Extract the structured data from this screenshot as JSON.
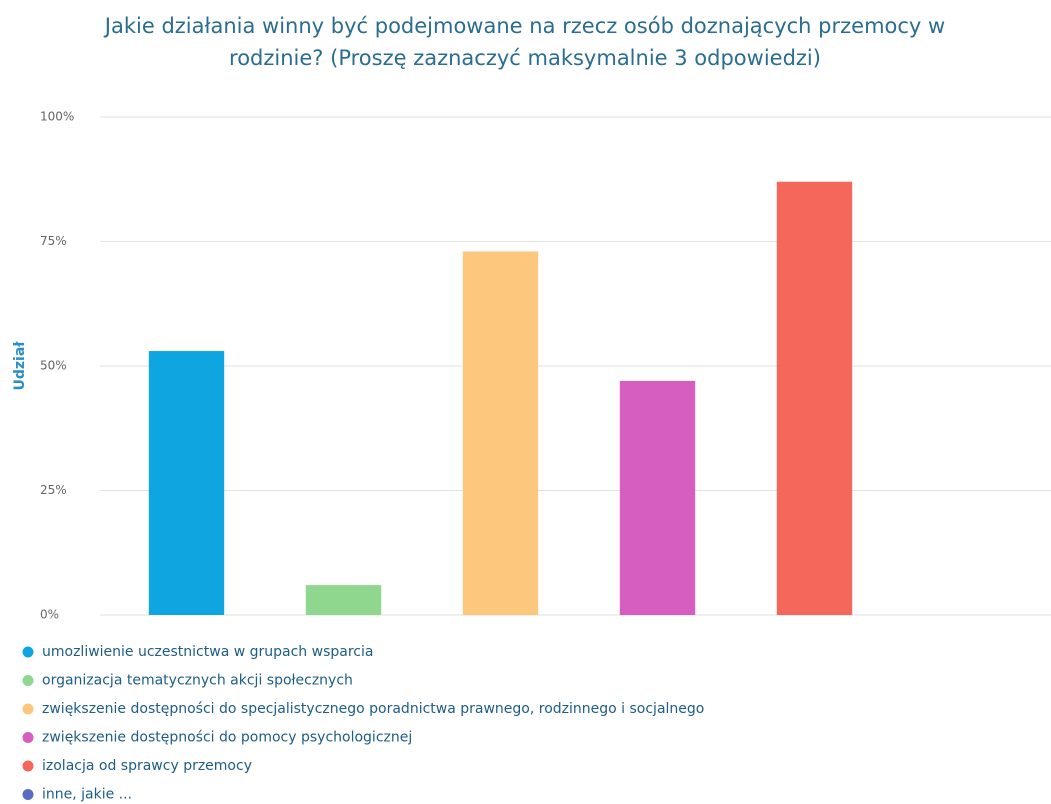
{
  "chart_data": {
    "type": "bar",
    "title": "Jakie działania winny być podejmowane na rzecz osób doznających przemocy w rodzinie? (Proszę zaznaczyć maksymalnie 3 odpowiedzi)",
    "y_label": "Udział",
    "categories": [
      "umozliwienie uczestnictwa w grupach wsparcia",
      "organizacja tematycznych akcji społecznych",
      "zwiększenie dostępności do specjalistycznego poradnictwa prawnego, rodzinnego i socjalnego",
      "zwiększenie dostępności do pomocy psychologicznej",
      "izolacja od sprawcy przemocy",
      "inne, jakie ..."
    ],
    "values": [
      53,
      6,
      73,
      47,
      87,
      0
    ],
    "colors": [
      "#0ea5e0",
      "#8fd68f",
      "#fdc77e",
      "#d65ec0",
      "#f4675a",
      "#5b6bc4"
    ],
    "ylim": [
      0,
      100
    ],
    "yticks": [
      {
        "value": 0,
        "label": "0%"
      },
      {
        "value": 25,
        "label": "25%"
      },
      {
        "value": 50,
        "label": "50%"
      },
      {
        "value": 75,
        "label": "75%"
      },
      {
        "value": 100,
        "label": "100%"
      }
    ],
    "grid": true
  }
}
